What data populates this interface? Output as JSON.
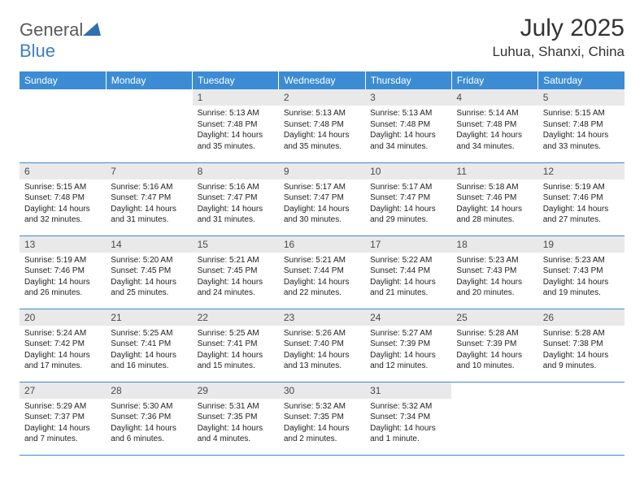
{
  "logo": {
    "text1": "General",
    "text2": "Blue",
    "icon_color": "#2f6fb3"
  },
  "title": "July 2025",
  "location": "Luhua, Shanxi, China",
  "colors": {
    "header_bg": "#3b8cd4",
    "header_fg": "#ffffff",
    "daynum_bg": "#e9e9e9",
    "rule": "#3b8cd4",
    "text": "#222222"
  },
  "dayNames": [
    "Sunday",
    "Monday",
    "Tuesday",
    "Wednesday",
    "Thursday",
    "Friday",
    "Saturday"
  ],
  "firstWeekday": 2,
  "daysInMonth": 31,
  "days": {
    "1": {
      "sunrise": "5:13 AM",
      "sunset": "7:48 PM",
      "daylight": "14 hours and 35 minutes."
    },
    "2": {
      "sunrise": "5:13 AM",
      "sunset": "7:48 PM",
      "daylight": "14 hours and 35 minutes."
    },
    "3": {
      "sunrise": "5:13 AM",
      "sunset": "7:48 PM",
      "daylight": "14 hours and 34 minutes."
    },
    "4": {
      "sunrise": "5:14 AM",
      "sunset": "7:48 PM",
      "daylight": "14 hours and 34 minutes."
    },
    "5": {
      "sunrise": "5:15 AM",
      "sunset": "7:48 PM",
      "daylight": "14 hours and 33 minutes."
    },
    "6": {
      "sunrise": "5:15 AM",
      "sunset": "7:48 PM",
      "daylight": "14 hours and 32 minutes."
    },
    "7": {
      "sunrise": "5:16 AM",
      "sunset": "7:47 PM",
      "daylight": "14 hours and 31 minutes."
    },
    "8": {
      "sunrise": "5:16 AM",
      "sunset": "7:47 PM",
      "daylight": "14 hours and 31 minutes."
    },
    "9": {
      "sunrise": "5:17 AM",
      "sunset": "7:47 PM",
      "daylight": "14 hours and 30 minutes."
    },
    "10": {
      "sunrise": "5:17 AM",
      "sunset": "7:47 PM",
      "daylight": "14 hours and 29 minutes."
    },
    "11": {
      "sunrise": "5:18 AM",
      "sunset": "7:46 PM",
      "daylight": "14 hours and 28 minutes."
    },
    "12": {
      "sunrise": "5:19 AM",
      "sunset": "7:46 PM",
      "daylight": "14 hours and 27 minutes."
    },
    "13": {
      "sunrise": "5:19 AM",
      "sunset": "7:46 PM",
      "daylight": "14 hours and 26 minutes."
    },
    "14": {
      "sunrise": "5:20 AM",
      "sunset": "7:45 PM",
      "daylight": "14 hours and 25 minutes."
    },
    "15": {
      "sunrise": "5:21 AM",
      "sunset": "7:45 PM",
      "daylight": "14 hours and 24 minutes."
    },
    "16": {
      "sunrise": "5:21 AM",
      "sunset": "7:44 PM",
      "daylight": "14 hours and 22 minutes."
    },
    "17": {
      "sunrise": "5:22 AM",
      "sunset": "7:44 PM",
      "daylight": "14 hours and 21 minutes."
    },
    "18": {
      "sunrise": "5:23 AM",
      "sunset": "7:43 PM",
      "daylight": "14 hours and 20 minutes."
    },
    "19": {
      "sunrise": "5:23 AM",
      "sunset": "7:43 PM",
      "daylight": "14 hours and 19 minutes."
    },
    "20": {
      "sunrise": "5:24 AM",
      "sunset": "7:42 PM",
      "daylight": "14 hours and 17 minutes."
    },
    "21": {
      "sunrise": "5:25 AM",
      "sunset": "7:41 PM",
      "daylight": "14 hours and 16 minutes."
    },
    "22": {
      "sunrise": "5:25 AM",
      "sunset": "7:41 PM",
      "daylight": "14 hours and 15 minutes."
    },
    "23": {
      "sunrise": "5:26 AM",
      "sunset": "7:40 PM",
      "daylight": "14 hours and 13 minutes."
    },
    "24": {
      "sunrise": "5:27 AM",
      "sunset": "7:39 PM",
      "daylight": "14 hours and 12 minutes."
    },
    "25": {
      "sunrise": "5:28 AM",
      "sunset": "7:39 PM",
      "daylight": "14 hours and 10 minutes."
    },
    "26": {
      "sunrise": "5:28 AM",
      "sunset": "7:38 PM",
      "daylight": "14 hours and 9 minutes."
    },
    "27": {
      "sunrise": "5:29 AM",
      "sunset": "7:37 PM",
      "daylight": "14 hours and 7 minutes."
    },
    "28": {
      "sunrise": "5:30 AM",
      "sunset": "7:36 PM",
      "daylight": "14 hours and 6 minutes."
    },
    "29": {
      "sunrise": "5:31 AM",
      "sunset": "7:35 PM",
      "daylight": "14 hours and 4 minutes."
    },
    "30": {
      "sunrise": "5:32 AM",
      "sunset": "7:35 PM",
      "daylight": "14 hours and 2 minutes."
    },
    "31": {
      "sunrise": "5:32 AM",
      "sunset": "7:34 PM",
      "daylight": "14 hours and 1 minute."
    }
  },
  "labels": {
    "sunrise": "Sunrise: ",
    "sunset": "Sunset: ",
    "daylight": "Daylight: "
  }
}
